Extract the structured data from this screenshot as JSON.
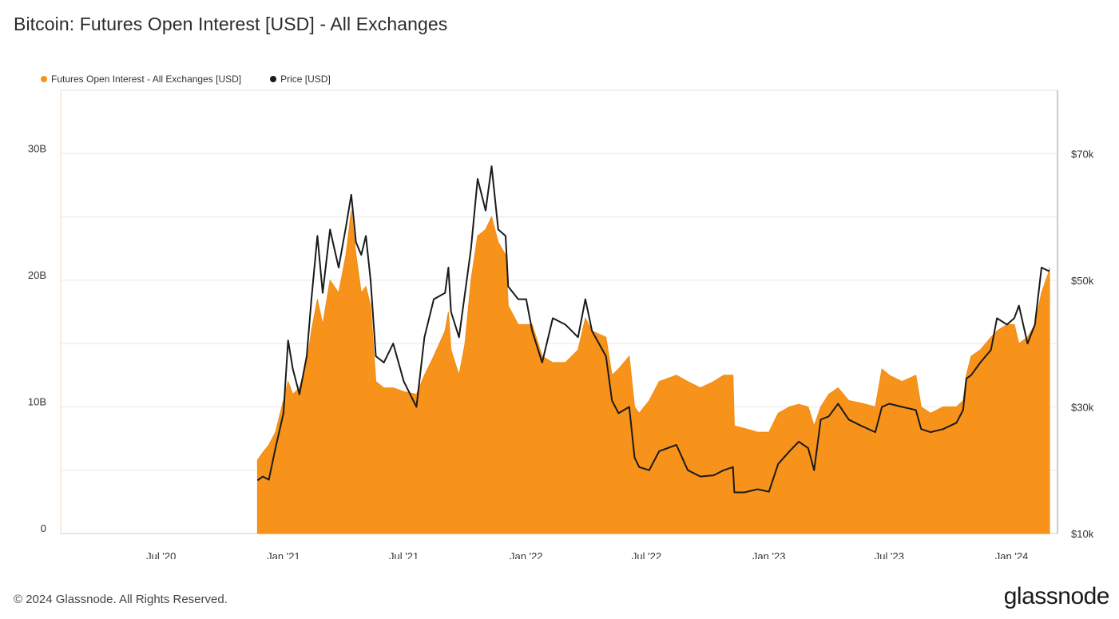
{
  "header": {
    "title": "Bitcoin: Futures Open Interest [USD] - All Exchanges"
  },
  "legend": {
    "oi_label": "Futures Open Interest - All Exchanges [USD]",
    "price_label": "Price [USD]"
  },
  "footer": {
    "copyright": "© 2024 Glassnode. All Rights Reserved.",
    "brand": "glassnode"
  },
  "chart_data": {
    "type": "area",
    "title": "Bitcoin: Futures Open Interest [USD] - All Exchanges",
    "x_ticks": [
      "Jul '20",
      "Jan '21",
      "Jul '21",
      "Jan '22",
      "Jul '22",
      "Jan '23",
      "Jul '23",
      "Jan '24"
    ],
    "x_tick_dates": [
      "2020-07-01",
      "2021-01-01",
      "2021-07-01",
      "2022-01-01",
      "2022-07-01",
      "2023-01-01",
      "2023-07-01",
      "2024-01-01"
    ],
    "x_range": [
      "2020-02-01",
      "2024-03-10"
    ],
    "left_axis": {
      "ticks": [
        "0",
        "10B",
        "20B",
        "30B"
      ],
      "tick_values": [
        0,
        10,
        20,
        30
      ],
      "range": [
        0,
        35
      ],
      "unit": "B"
    },
    "right_axis": {
      "ticks": [
        "$10k",
        "$30k",
        "$50k",
        "$70k"
      ],
      "tick_values": [
        10000,
        30000,
        50000,
        70000
      ],
      "range": [
        10000,
        80000
      ]
    },
    "grid": true,
    "legend_position": "top-left",
    "colors": {
      "open_interest": "#f7931a",
      "price": "#1a1a1a",
      "grid": "#e6e6e6",
      "axis": "#cccccc"
    },
    "series": [
      {
        "name": "Futures Open Interest - All Exchanges [USD]",
        "axis": "left",
        "style": "area",
        "points": [
          [
            "2020-11-23",
            5.8
          ],
          [
            "2020-12-01",
            6.4
          ],
          [
            "2020-12-10",
            7.0
          ],
          [
            "2020-12-20",
            8.0
          ],
          [
            "2021-01-01",
            10.5
          ],
          [
            "2021-01-08",
            12.0
          ],
          [
            "2021-01-15",
            11.0
          ],
          [
            "2021-01-25",
            11.5
          ],
          [
            "2021-02-05",
            13.5
          ],
          [
            "2021-02-12",
            16.0
          ],
          [
            "2021-02-21",
            18.5
          ],
          [
            "2021-03-01",
            16.5
          ],
          [
            "2021-03-12",
            20.0
          ],
          [
            "2021-03-25",
            19.0
          ],
          [
            "2021-04-05",
            22.0
          ],
          [
            "2021-04-13",
            25.5
          ],
          [
            "2021-04-20",
            22.0
          ],
          [
            "2021-04-28",
            19.0
          ],
          [
            "2021-05-05",
            19.5
          ],
          [
            "2021-05-12",
            18.0
          ],
          [
            "2021-05-20",
            12.0
          ],
          [
            "2021-06-01",
            11.5
          ],
          [
            "2021-06-15",
            11.5
          ],
          [
            "2021-07-01",
            11.2
          ],
          [
            "2021-07-20",
            11.0
          ],
          [
            "2021-08-01",
            12.5
          ],
          [
            "2021-08-15",
            14.0
          ],
          [
            "2021-09-01",
            16.0
          ],
          [
            "2021-09-06",
            17.5
          ],
          [
            "2021-09-10",
            14.5
          ],
          [
            "2021-09-22",
            12.5
          ],
          [
            "2021-10-01",
            15.0
          ],
          [
            "2021-10-10",
            20.0
          ],
          [
            "2021-10-20",
            23.5
          ],
          [
            "2021-11-01",
            24.0
          ],
          [
            "2021-11-10",
            25.0
          ],
          [
            "2021-11-20",
            23.0
          ],
          [
            "2021-12-01",
            22.0
          ],
          [
            "2021-12-05",
            18.0
          ],
          [
            "2021-12-20",
            16.5
          ],
          [
            "2022-01-01",
            16.5
          ],
          [
            "2022-01-10",
            16.5
          ],
          [
            "2022-01-25",
            14.0
          ],
          [
            "2022-02-10",
            13.5
          ],
          [
            "2022-03-01",
            13.5
          ],
          [
            "2022-03-20",
            14.5
          ],
          [
            "2022-03-31",
            17.0
          ],
          [
            "2022-04-10",
            16.0
          ],
          [
            "2022-05-01",
            15.5
          ],
          [
            "2022-05-10",
            12.5
          ],
          [
            "2022-05-20",
            13.0
          ],
          [
            "2022-06-05",
            14.0
          ],
          [
            "2022-06-13",
            10.0
          ],
          [
            "2022-06-20",
            9.5
          ],
          [
            "2022-07-05",
            10.5
          ],
          [
            "2022-07-20",
            12.0
          ],
          [
            "2022-08-15",
            12.5
          ],
          [
            "2022-09-01",
            12.0
          ],
          [
            "2022-09-20",
            11.5
          ],
          [
            "2022-10-10",
            12.0
          ],
          [
            "2022-10-25",
            12.5
          ],
          [
            "2022-11-08",
            12.5
          ],
          [
            "2022-11-10",
            8.5
          ],
          [
            "2022-11-25",
            8.3
          ],
          [
            "2022-12-15",
            8.0
          ],
          [
            "2023-01-01",
            8.0
          ],
          [
            "2023-01-15",
            9.5
          ],
          [
            "2023-02-01",
            10.0
          ],
          [
            "2023-02-15",
            10.2
          ],
          [
            "2023-03-01",
            10.0
          ],
          [
            "2023-03-10",
            8.5
          ],
          [
            "2023-03-20",
            10.0
          ],
          [
            "2023-04-01",
            11.0
          ],
          [
            "2023-04-15",
            11.5
          ],
          [
            "2023-05-01",
            10.5
          ],
          [
            "2023-05-20",
            10.3
          ],
          [
            "2023-06-10",
            10.0
          ],
          [
            "2023-06-20",
            13.0
          ],
          [
            "2023-07-01",
            12.5
          ],
          [
            "2023-07-20",
            12.0
          ],
          [
            "2023-08-10",
            12.5
          ],
          [
            "2023-08-18",
            10.0
          ],
          [
            "2023-09-01",
            9.5
          ],
          [
            "2023-09-20",
            10.0
          ],
          [
            "2023-10-10",
            10.0
          ],
          [
            "2023-10-20",
            10.5
          ],
          [
            "2023-10-25",
            12.5
          ],
          [
            "2023-11-01",
            14.0
          ],
          [
            "2023-11-15",
            14.5
          ],
          [
            "2023-12-01",
            15.5
          ],
          [
            "2023-12-10",
            16.0
          ],
          [
            "2023-12-25",
            16.5
          ],
          [
            "2024-01-05",
            16.5
          ],
          [
            "2024-01-12",
            15.0
          ],
          [
            "2024-01-25",
            15.5
          ],
          [
            "2024-02-05",
            16.5
          ],
          [
            "2024-02-15",
            19.0
          ],
          [
            "2024-02-25",
            20.5
          ],
          [
            "2024-02-27",
            21.0
          ]
        ]
      },
      {
        "name": "Price [USD]",
        "axis": "right",
        "style": "line",
        "points": [
          [
            "2020-11-23",
            18400
          ],
          [
            "2020-12-01",
            19000
          ],
          [
            "2020-12-10",
            18500
          ],
          [
            "2020-12-20",
            23500
          ],
          [
            "2021-01-01",
            29000
          ],
          [
            "2021-01-08",
            40500
          ],
          [
            "2021-01-15",
            36000
          ],
          [
            "2021-01-25",
            32000
          ],
          [
            "2021-02-05",
            38000
          ],
          [
            "2021-02-12",
            47000
          ],
          [
            "2021-02-21",
            57000
          ],
          [
            "2021-03-01",
            48000
          ],
          [
            "2021-03-12",
            58000
          ],
          [
            "2021-03-25",
            52000
          ],
          [
            "2021-04-05",
            58500
          ],
          [
            "2021-04-13",
            63500
          ],
          [
            "2021-04-20",
            56000
          ],
          [
            "2021-04-28",
            54000
          ],
          [
            "2021-05-05",
            57000
          ],
          [
            "2021-05-12",
            50000
          ],
          [
            "2021-05-20",
            38000
          ],
          [
            "2021-06-01",
            37000
          ],
          [
            "2021-06-15",
            40000
          ],
          [
            "2021-07-01",
            34000
          ],
          [
            "2021-07-20",
            30000
          ],
          [
            "2021-08-01",
            41000
          ],
          [
            "2021-08-15",
            47000
          ],
          [
            "2021-09-01",
            48000
          ],
          [
            "2021-09-06",
            52000
          ],
          [
            "2021-09-10",
            45000
          ],
          [
            "2021-09-22",
            41000
          ],
          [
            "2021-10-01",
            48000
          ],
          [
            "2021-10-10",
            55000
          ],
          [
            "2021-10-20",
            66000
          ],
          [
            "2021-11-01",
            61000
          ],
          [
            "2021-11-10",
            68000
          ],
          [
            "2021-11-20",
            58000
          ],
          [
            "2021-12-01",
            57000
          ],
          [
            "2021-12-05",
            49000
          ],
          [
            "2021-12-20",
            47000
          ],
          [
            "2022-01-01",
            47000
          ],
          [
            "2022-01-10",
            42000
          ],
          [
            "2022-01-25",
            37000
          ],
          [
            "2022-02-10",
            44000
          ],
          [
            "2022-03-01",
            43000
          ],
          [
            "2022-03-20",
            41000
          ],
          [
            "2022-03-31",
            47000
          ],
          [
            "2022-04-10",
            42000
          ],
          [
            "2022-05-01",
            38000
          ],
          [
            "2022-05-10",
            31000
          ],
          [
            "2022-05-20",
            29000
          ],
          [
            "2022-06-05",
            30000
          ],
          [
            "2022-06-13",
            22000
          ],
          [
            "2022-06-20",
            20500
          ],
          [
            "2022-07-05",
            20000
          ],
          [
            "2022-07-20",
            23000
          ],
          [
            "2022-08-15",
            24000
          ],
          [
            "2022-09-01",
            20000
          ],
          [
            "2022-09-20",
            19000
          ],
          [
            "2022-10-10",
            19200
          ],
          [
            "2022-10-25",
            20000
          ],
          [
            "2022-11-08",
            20500
          ],
          [
            "2022-11-10",
            16500
          ],
          [
            "2022-11-25",
            16500
          ],
          [
            "2022-12-15",
            17000
          ],
          [
            "2023-01-01",
            16600
          ],
          [
            "2023-01-15",
            21000
          ],
          [
            "2023-02-01",
            23000
          ],
          [
            "2023-02-15",
            24500
          ],
          [
            "2023-03-01",
            23500
          ],
          [
            "2023-03-10",
            20000
          ],
          [
            "2023-03-20",
            28000
          ],
          [
            "2023-04-01",
            28500
          ],
          [
            "2023-04-15",
            30500
          ],
          [
            "2023-05-01",
            28000
          ],
          [
            "2023-05-20",
            27000
          ],
          [
            "2023-06-10",
            26000
          ],
          [
            "2023-06-20",
            30000
          ],
          [
            "2023-07-01",
            30500
          ],
          [
            "2023-07-20",
            30000
          ],
          [
            "2023-08-10",
            29500
          ],
          [
            "2023-08-18",
            26500
          ],
          [
            "2023-09-01",
            26000
          ],
          [
            "2023-09-20",
            26500
          ],
          [
            "2023-10-10",
            27500
          ],
          [
            "2023-10-20",
            29500
          ],
          [
            "2023-10-25",
            34500
          ],
          [
            "2023-11-01",
            35000
          ],
          [
            "2023-11-15",
            37000
          ],
          [
            "2023-12-01",
            39000
          ],
          [
            "2023-12-10",
            44000
          ],
          [
            "2023-12-25",
            43000
          ],
          [
            "2024-01-05",
            44000
          ],
          [
            "2024-01-12",
            46000
          ],
          [
            "2024-01-25",
            40000
          ],
          [
            "2024-02-05",
            43000
          ],
          [
            "2024-02-15",
            52000
          ],
          [
            "2024-02-25",
            51500
          ],
          [
            "2024-02-27",
            51500
          ]
        ]
      }
    ]
  }
}
